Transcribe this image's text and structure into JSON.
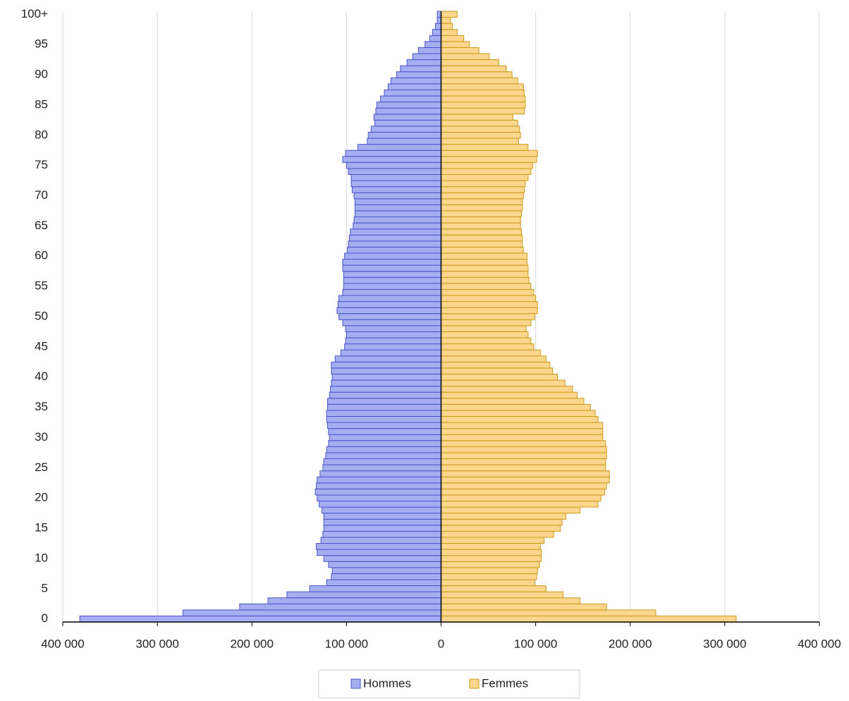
{
  "chart_data": {
    "type": "pyramid",
    "categories": [
      "0",
      null,
      null,
      null,
      null,
      "5",
      null,
      null,
      null,
      null,
      "10",
      null,
      null,
      null,
      null,
      "15",
      null,
      null,
      null,
      null,
      "20",
      null,
      null,
      null,
      null,
      "25",
      null,
      null,
      null,
      null,
      "30",
      null,
      null,
      null,
      null,
      "35",
      null,
      null,
      null,
      null,
      "40",
      null,
      null,
      null,
      null,
      "45",
      null,
      null,
      null,
      null,
      "50",
      null,
      null,
      null,
      null,
      "55",
      null,
      null,
      null,
      null,
      "60",
      null,
      null,
      null,
      null,
      "65",
      null,
      null,
      null,
      null,
      "70",
      null,
      null,
      null,
      null,
      "75",
      null,
      null,
      null,
      null,
      "80",
      null,
      null,
      null,
      null,
      "85",
      null,
      null,
      null,
      null,
      "90",
      null,
      null,
      null,
      null,
      "95",
      null,
      null,
      null,
      null,
      "100+"
    ],
    "series": [
      {
        "name": "Hommes",
        "color": "#a4aef0",
        "values": [
          -382000,
          -273000,
          -213000,
          -183000,
          -163000,
          -139000,
          -121000,
          -116000,
          -115000,
          -119000,
          -124000,
          -131000,
          -132000,
          -127000,
          -125000,
          -124000,
          -124000,
          -124000,
          -126000,
          -129000,
          -131000,
          -133000,
          -132000,
          -131000,
          -128000,
          -125000,
          -124000,
          -122000,
          -121000,
          -119000,
          -118000,
          -119000,
          -120000,
          -121000,
          -121000,
          -120000,
          -120000,
          -118000,
          -117000,
          -116000,
          -115000,
          -116000,
          -116000,
          -112000,
          -106000,
          -102000,
          -101000,
          -100000,
          -101000,
          -104000,
          -108000,
          -110000,
          -109000,
          -108000,
          -104000,
          -103000,
          -103000,
          -103000,
          -104000,
          -104000,
          -102000,
          -99000,
          -98000,
          -97000,
          -96000,
          -93000,
          -92000,
          -91000,
          -91000,
          -91000,
          -92000,
          -94000,
          -95000,
          -95000,
          -98000,
          -100000,
          -104000,
          -101000,
          -88000,
          -78000,
          -77000,
          -74000,
          -70000,
          -71000,
          -69000,
          -68000,
          -64000,
          -60000,
          -56000,
          -53000,
          -47000,
          -43000,
          -36000,
          -30000,
          -24000,
          -17000,
          -12000,
          -9000,
          -6000,
          -4000,
          -4000
        ]
      },
      {
        "name": "Femmes",
        "color": "#fcd68c",
        "values": [
          312000,
          227000,
          175000,
          147000,
          129000,
          111000,
          99000,
          101000,
          102000,
          104000,
          106000,
          106000,
          105000,
          109000,
          119000,
          126000,
          128000,
          132000,
          147000,
          166000,
          169000,
          173000,
          175000,
          178000,
          178000,
          174000,
          174000,
          175000,
          175000,
          174000,
          171000,
          171000,
          171000,
          166000,
          163000,
          158000,
          151000,
          144000,
          139000,
          131000,
          123000,
          118000,
          115000,
          111000,
          105000,
          98000,
          95000,
          92000,
          90000,
          95000,
          99000,
          102000,
          102000,
          100000,
          98000,
          95000,
          93000,
          92000,
          92000,
          91000,
          91000,
          87000,
          86000,
          86000,
          85000,
          84000,
          84000,
          85000,
          86000,
          86000,
          87000,
          88000,
          89000,
          92000,
          95000,
          97000,
          101000,
          102000,
          92000,
          82000,
          84000,
          83000,
          81000,
          76000,
          88000,
          89000,
          89000,
          88000,
          87000,
          81000,
          75000,
          69000,
          61000,
          51000,
          40000,
          30000,
          24000,
          17000,
          12000,
          10000,
          17000
        ]
      }
    ],
    "xlim": [
      -400000,
      400000
    ],
    "xticks": [
      {
        "value": -400000,
        "label": "400 000"
      },
      {
        "value": -300000,
        "label": "300 000"
      },
      {
        "value": -200000,
        "label": "200 000"
      },
      {
        "value": -100000,
        "label": "100 000"
      },
      0,
      {
        "value": 100000,
        "label": "100 000"
      },
      {
        "value": 200000,
        "label": "200 000"
      },
      {
        "value": 300000,
        "label": "300 000"
      },
      {
        "value": 400000,
        "label": "400 000"
      }
    ],
    "grid": true,
    "legend": "bottom"
  }
}
